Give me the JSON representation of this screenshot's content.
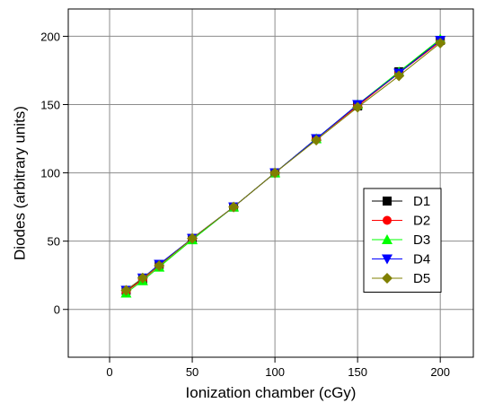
{
  "chart_data": {
    "type": "line",
    "title": "",
    "xlabel": "Ionization chamber (cGy)",
    "ylabel": "Diodes (arbitrary units)",
    "xlim": [
      -25,
      220
    ],
    "ylim": [
      -35,
      220
    ],
    "xticks": [
      0,
      50,
      100,
      150,
      200
    ],
    "yticks": [
      0,
      50,
      100,
      150,
      200
    ],
    "grid": true,
    "legend_position": "right",
    "x": [
      10,
      20,
      30,
      50,
      75,
      100,
      125,
      150,
      175,
      200
    ],
    "series": [
      {
        "name": "D1",
        "marker": "square",
        "color": "#000000",
        "values": [
          14,
          22,
          33,
          52,
          75,
          100,
          125,
          149,
          174,
          197
        ]
      },
      {
        "name": "D2",
        "marker": "circle",
        "color": "#ff0000",
        "values": [
          13,
          22,
          32,
          52,
          75,
          100,
          125,
          149,
          173,
          196
        ]
      },
      {
        "name": "D3",
        "marker": "triangle-up",
        "color": "#00ff00",
        "values": [
          12,
          21,
          31,
          51,
          75,
          100,
          125,
          150,
          174,
          198
        ]
      },
      {
        "name": "D4",
        "marker": "triangle-down",
        "color": "#0000ff",
        "values": [
          14,
          23,
          33,
          52,
          75,
          100,
          125,
          150,
          173,
          197
        ]
      },
      {
        "name": "D5",
        "marker": "diamond",
        "color": "#808000",
        "values": [
          14,
          23,
          32,
          52,
          75,
          100,
          124,
          148,
          171,
          195
        ]
      }
    ]
  }
}
